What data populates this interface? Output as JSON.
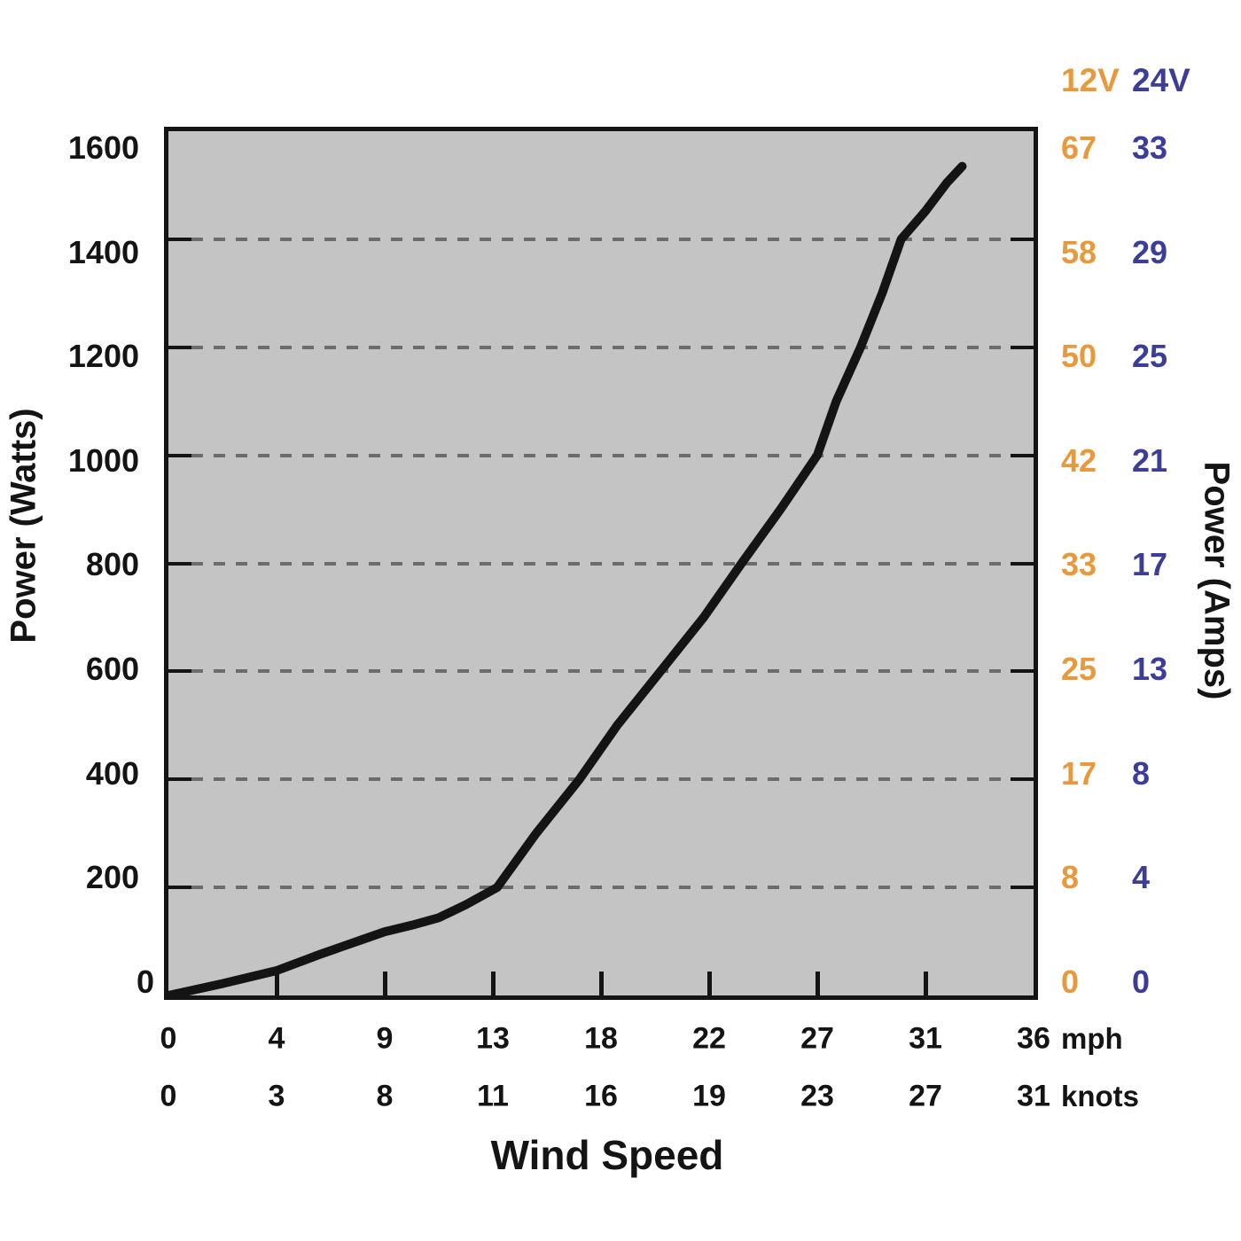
{
  "chart_data": {
    "type": "line",
    "title": "",
    "xlabel": "Wind Speed",
    "ylabel_left": "Power (Watts)",
    "ylabel_right": "Power (Amps)",
    "grid": "dashed-horizontal",
    "legend_position": "right-columns",
    "x_axis": {
      "mph_ticks": [
        0,
        4,
        9,
        13,
        18,
        22,
        27,
        31,
        36
      ],
      "knots_ticks": [
        0,
        3,
        8,
        11,
        16,
        19,
        23,
        27,
        31
      ],
      "mph_unit": "mph",
      "knots_unit": "knots",
      "range_mph": [
        0,
        36
      ]
    },
    "y_axis_watts": {
      "ticks": [
        1600,
        1400,
        1200,
        1000,
        800,
        600,
        400,
        200,
        0
      ],
      "gridlines": [
        1400,
        1200,
        1000,
        800,
        600,
        400,
        200
      ],
      "min": 0,
      "max": 1600
    },
    "right_columns": {
      "header_12v": "12V",
      "header_24v": "24V",
      "amps_12v": [
        67,
        58,
        50,
        42,
        33,
        25,
        17,
        8,
        0
      ],
      "amps_24v": [
        33,
        29,
        25,
        21,
        17,
        13,
        8,
        4,
        0
      ]
    },
    "series": [
      {
        "name": "power-curve",
        "color": "#141414",
        "points_mph_watts": [
          [
            0,
            0
          ],
          [
            2,
            22
          ],
          [
            4,
            46
          ],
          [
            6,
            76
          ],
          [
            8,
            104
          ],
          [
            9,
            118
          ],
          [
            10,
            130
          ],
          [
            11,
            144
          ],
          [
            12,
            168
          ],
          [
            13.2,
            200
          ],
          [
            15,
            300
          ],
          [
            17,
            400
          ],
          [
            18.6,
            500
          ],
          [
            20.2,
            600
          ],
          [
            21.8,
            700
          ],
          [
            23.5,
            800
          ],
          [
            25.3,
            900
          ],
          [
            27,
            1000
          ],
          [
            27.7,
            1100
          ],
          [
            28.6,
            1200
          ],
          [
            29.4,
            1300
          ],
          [
            30.1,
            1400
          ],
          [
            31,
            1452
          ],
          [
            32,
            1505
          ],
          [
            32.7,
            1535
          ]
        ]
      }
    ],
    "colors": {
      "col_12v": "#E8993B",
      "col_24v": "#3B3D99",
      "plot_bg": "#C4C4C4",
      "gridline": "#6C6C6C",
      "axis": "#141414"
    }
  }
}
